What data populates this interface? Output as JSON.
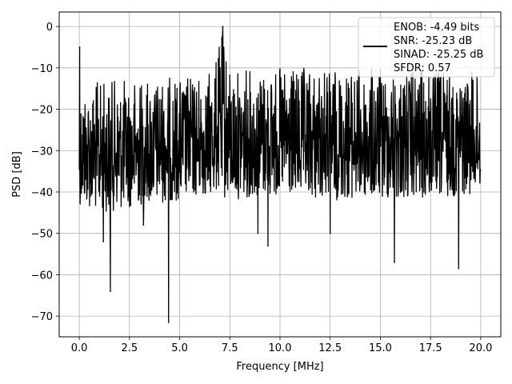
{
  "chart_data": {
    "type": "line",
    "xlabel": "Frequency [MHz]",
    "ylabel": "PSD [dB]",
    "xlim": [
      -1.0,
      21.0
    ],
    "ylim": [
      -75,
      3.5
    ],
    "xticks": [
      0.0,
      2.5,
      5.0,
      7.5,
      10.0,
      12.5,
      15.0,
      17.5,
      20.0
    ],
    "xtick_labels": [
      "0.0",
      "2.5",
      "5.0",
      "7.5",
      "10.0",
      "12.5",
      "15.0",
      "17.5",
      "20.0"
    ],
    "yticks": [
      0,
      -10,
      -20,
      -30,
      -40,
      -50,
      -60,
      -70
    ],
    "ytick_labels": [
      "0",
      "−10",
      "−20",
      "−30",
      "−40",
      "−50",
      "−60",
      "−70"
    ],
    "grid": true,
    "legend_position": "top-right",
    "series": [
      {
        "color": "#000000",
        "noise_floor_envelope": {
          "x": [
            0.05,
            1.0,
            2.5,
            5.0,
            6.5,
            7.0,
            7.2,
            7.5,
            9.0,
            12.5,
            15.0,
            17.5,
            20.0
          ],
          "upper": [
            -14,
            -13,
            -12.5,
            -12,
            -11,
            -4,
            0,
            -10,
            -10,
            -10,
            -10,
            -10,
            -11
          ],
          "lower": [
            -43,
            -45,
            -44,
            -42,
            -41,
            -40,
            -42,
            -42,
            -41,
            -42,
            -42,
            -42,
            -40
          ]
        },
        "spikes": [
          {
            "x": 0.02,
            "y": -5
          },
          {
            "x": 1.55,
            "y": -64
          },
          {
            "x": 1.2,
            "y": -52
          },
          {
            "x": 4.45,
            "y": -71.5
          },
          {
            "x": 7.15,
            "y": 0
          },
          {
            "x": 9.4,
            "y": -53
          },
          {
            "x": 8.9,
            "y": -50
          },
          {
            "x": 12.5,
            "y": -50
          },
          {
            "x": 15.7,
            "y": -57
          },
          {
            "x": 18.9,
            "y": -58.5
          },
          {
            "x": 3.2,
            "y": -48
          }
        ]
      }
    ],
    "legend": {
      "entries": [
        "ENOB: -4.49 bits",
        "SNR: -25.23 dB",
        "SINAD: -25.25 dB",
        "SFDR: 0.57"
      ]
    }
  }
}
